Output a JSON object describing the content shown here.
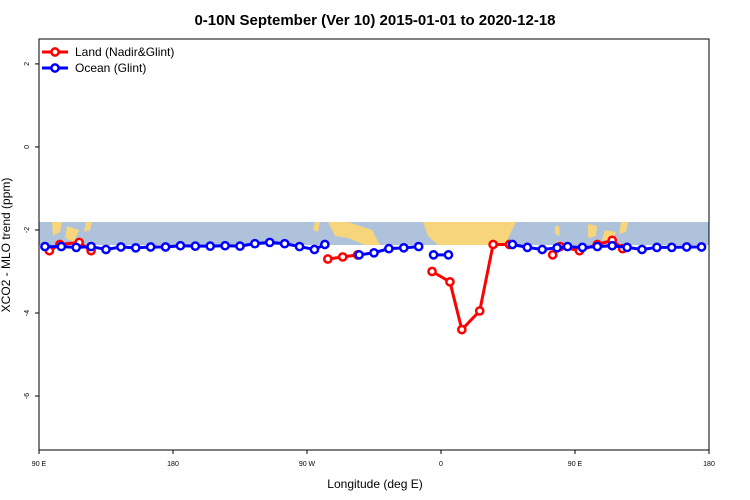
{
  "chart_data": {
    "type": "line",
    "title": "0-10N September (Ver 10)   2015-01-01 to 2020-12-18",
    "xlabel": "Longitude (deg E)",
    "ylabel": "XCO2 - MLO trend (ppm)",
    "xlim": [
      90,
      540
    ],
    "ylim": [
      -7.3,
      2.6
    ],
    "x_ticks": [
      {
        "value": 90,
        "label": "90 E"
      },
      {
        "value": 180,
        "label": "180"
      },
      {
        "value": 270,
        "label": "90 W"
      },
      {
        "value": 360,
        "label": "0"
      },
      {
        "value": 450,
        "label": "90 E"
      },
      {
        "value": 540,
        "label": "180"
      }
    ],
    "y_ticks": [
      {
        "value": 2,
        "label": "2"
      },
      {
        "value": 0,
        "label": "0"
      },
      {
        "value": -2,
        "label": "-2"
      },
      {
        "value": -4,
        "label": "-4"
      },
      {
        "value": -6,
        "label": "-6"
      }
    ],
    "map_band": {
      "y_top": -1.85,
      "y_bottom": -2.4
    },
    "legend": {
      "position": "top-left"
    },
    "series": [
      {
        "name": "Land (Nadir&Glint)",
        "color": "#ff0000",
        "segments": [
          [
            [
              97,
              -2.5
            ],
            [
              104,
              -2.35
            ],
            [
              117,
              -2.3
            ],
            [
              125,
              -2.5
            ]
          ],
          [
            [
              284,
              -2.7
            ],
            [
              294,
              -2.65
            ],
            [
              304,
              -2.6
            ]
          ],
          [
            [
              354,
              -3.0
            ],
            [
              366,
              -3.25
            ],
            [
              374,
              -4.4
            ],
            [
              386,
              -3.95
            ],
            [
              395,
              -2.35
            ],
            [
              406,
              -2.35
            ]
          ],
          [
            [
              435,
              -2.6
            ],
            [
              440,
              -2.4
            ],
            [
              453,
              -2.5
            ],
            [
              465,
              -2.35
            ],
            [
              475,
              -2.25
            ],
            [
              482,
              -2.45
            ]
          ]
        ]
      },
      {
        "name": "Ocean (Glint)",
        "color": "#0000ff",
        "segments": [
          [
            [
              94,
              -2.4
            ],
            [
              105,
              -2.4
            ],
            [
              115,
              -2.42
            ],
            [
              125,
              -2.4
            ],
            [
              135,
              -2.47
            ],
            [
              145,
              -2.41
            ],
            [
              155,
              -2.43
            ],
            [
              165,
              -2.41
            ],
            [
              175,
              -2.41
            ],
            [
              185,
              -2.38
            ],
            [
              195,
              -2.39
            ],
            [
              205,
              -2.39
            ],
            [
              215,
              -2.38
            ],
            [
              225,
              -2.39
            ],
            [
              235,
              -2.33
            ],
            [
              245,
              -2.3
            ],
            [
              255,
              -2.33
            ],
            [
              265,
              -2.4
            ],
            [
              275,
              -2.47
            ],
            [
              282,
              -2.35
            ]
          ],
          [
            [
              305,
              -2.6
            ],
            [
              315,
              -2.55
            ],
            [
              325,
              -2.45
            ],
            [
              335,
              -2.43
            ],
            [
              345,
              -2.4
            ]
          ],
          [
            [
              355,
              -2.6
            ],
            [
              365,
              -2.6
            ]
          ],
          [
            [
              408,
              -2.35
            ],
            [
              418,
              -2.42
            ],
            [
              428,
              -2.47
            ],
            [
              438,
              -2.43
            ],
            [
              445,
              -2.4
            ],
            [
              455,
              -2.42
            ],
            [
              465,
              -2.4
            ],
            [
              475,
              -2.38
            ],
            [
              485,
              -2.42
            ],
            [
              495,
              -2.47
            ],
            [
              505,
              -2.42
            ],
            [
              515,
              -2.42
            ],
            [
              525,
              -2.41
            ],
            [
              535,
              -2.41
            ]
          ]
        ]
      }
    ]
  }
}
